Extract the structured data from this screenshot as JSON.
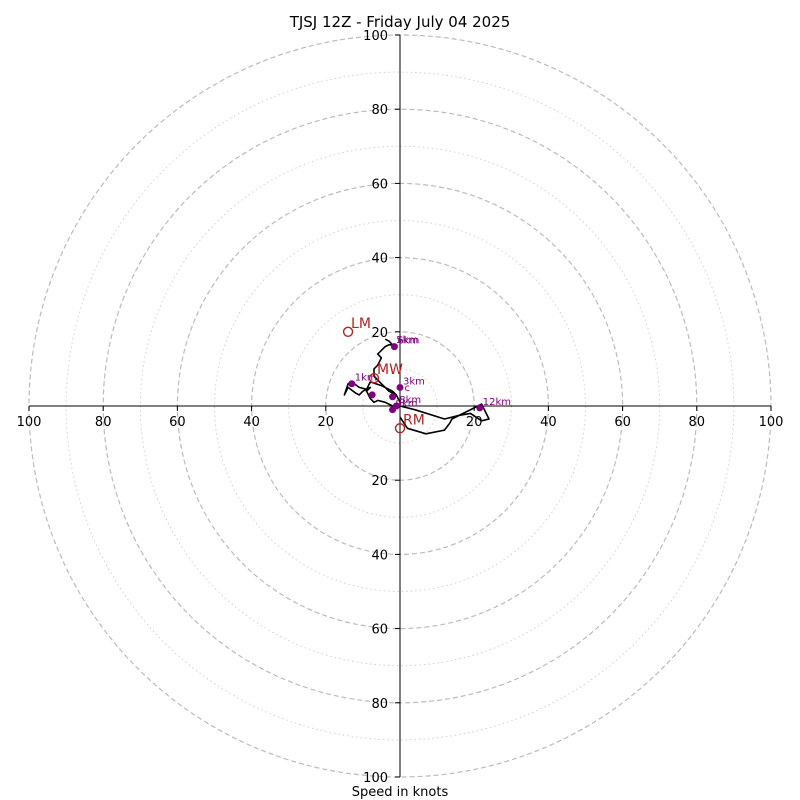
{
  "chart_data": {
    "type": "hodograph",
    "title": "TJSJ 12Z - Friday July 04 2025",
    "xlabel": "Speed in knots",
    "range": [
      -100,
      100
    ],
    "x_ticks": [
      "100",
      "80",
      "60",
      "40",
      "20",
      "20",
      "40",
      "60",
      "80",
      "100"
    ],
    "y_ticks": [
      "100",
      "80",
      "60",
      "40",
      "20",
      "20",
      "40",
      "60",
      "80",
      "100"
    ],
    "rings_dashed": [
      20,
      40,
      60,
      80,
      100
    ],
    "rings_dotted": [
      10,
      30,
      50,
      70,
      90
    ],
    "grid": true,
    "colors": {
      "trace": "#000000",
      "height_points": "#800080",
      "motion_markers": "#b22222",
      "rings": "#bbbbbb",
      "axes": "#000000"
    },
    "hodograph_trace": [
      [
        0,
        -3
      ],
      [
        2,
        -6
      ],
      [
        7,
        -7.5
      ],
      [
        12,
        -6.5
      ],
      [
        13.5,
        -4.5
      ],
      [
        14,
        -3.5
      ],
      [
        20,
        -0.5
      ],
      [
        22,
        0.5
      ],
      [
        24,
        -3.5
      ],
      [
        22,
        -4
      ],
      [
        19,
        -2
      ],
      [
        16,
        -2.5
      ],
      [
        12,
        -3.5
      ],
      [
        4,
        -1
      ],
      [
        0,
        0
      ],
      [
        -2,
        0
      ],
      [
        -4,
        1
      ],
      [
        -6,
        1.5
      ],
      [
        -7,
        1
      ],
      [
        -8,
        2
      ],
      [
        -9,
        4
      ],
      [
        -8,
        5
      ],
      [
        -10,
        4
      ],
      [
        -11,
        3
      ],
      [
        -12,
        3.5
      ],
      [
        -14,
        5
      ],
      [
        -15,
        3
      ],
      [
        -14,
        6
      ],
      [
        -13,
        6.5
      ],
      [
        -11,
        5
      ],
      [
        -9,
        4.5
      ],
      [
        -8,
        6.5
      ],
      [
        -5,
        5.5
      ],
      [
        -3,
        4.5
      ],
      [
        -2,
        4
      ],
      [
        -1,
        3
      ],
      [
        0,
        1
      ],
      [
        -1,
        3
      ],
      [
        -3,
        4
      ],
      [
        -5,
        6
      ],
      [
        -6,
        7
      ],
      [
        -7,
        8
      ],
      [
        -7,
        10
      ],
      [
        -6,
        11
      ],
      [
        -5,
        13
      ],
      [
        -6,
        14
      ],
      [
        -5,
        15
      ],
      [
        -4,
        16
      ],
      [
        -3,
        16.5
      ],
      [
        -2,
        16.5
      ],
      [
        -3,
        17.5
      ],
      [
        -4,
        18
      ]
    ],
    "height_points": [
      {
        "label": "1km",
        "x": -13,
        "y": 6
      },
      {
        "label": "",
        "x": -7.5,
        "y": 3
      },
      {
        "label": "3km",
        "x": 0,
        "y": 5
      },
      {
        "label": "",
        "x": -2,
        "y": 2.5
      },
      {
        "label": "6km",
        "x": -1.5,
        "y": 16
      },
      {
        "label": "8km",
        "x": -1,
        "y": 0
      },
      {
        "label": "9km",
        "x": -2,
        "y": -1
      },
      {
        "label": "12km",
        "x": 21.5,
        "y": -0.5
      }
    ],
    "extra_labels": [
      {
        "text": "5km",
        "x": -1,
        "y": 17
      },
      {
        "text": "c",
        "x": 1.2,
        "y": 4
      }
    ],
    "motion_markers": [
      {
        "label": "LM",
        "x": -14,
        "y": 20
      },
      {
        "label": "MW",
        "x": -7,
        "y": 7.5
      },
      {
        "label": "RM",
        "x": 0,
        "y": -6
      }
    ]
  }
}
